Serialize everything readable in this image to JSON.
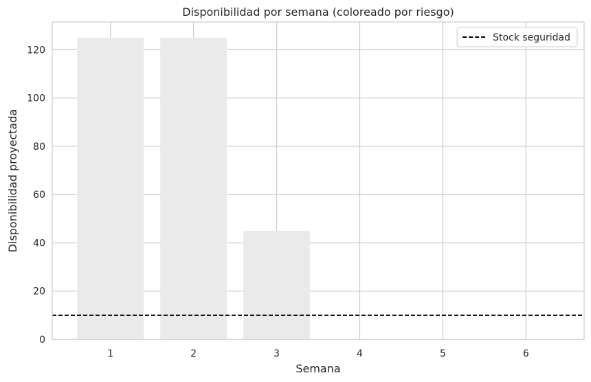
{
  "chart_data": {
    "type": "bar",
    "title": "Disponibilidad por semana (coloreado por riesgo)",
    "xlabel": "Semana",
    "ylabel": "Disponibilidad proyectada",
    "categories": [
      "1",
      "2",
      "3",
      "4",
      "5",
      "6"
    ],
    "values": [
      125,
      125,
      45,
      0,
      0,
      0
    ],
    "ylim": [
      0,
      131.5
    ],
    "yticks": [
      0,
      20,
      40,
      60,
      80,
      100,
      120
    ],
    "safety_stock": {
      "name": "Stock seguridad",
      "value": 10,
      "style": "dashed",
      "color": "#000000"
    },
    "bar_color": "#eaeaea",
    "grid": true,
    "legend_position": "top-right"
  }
}
